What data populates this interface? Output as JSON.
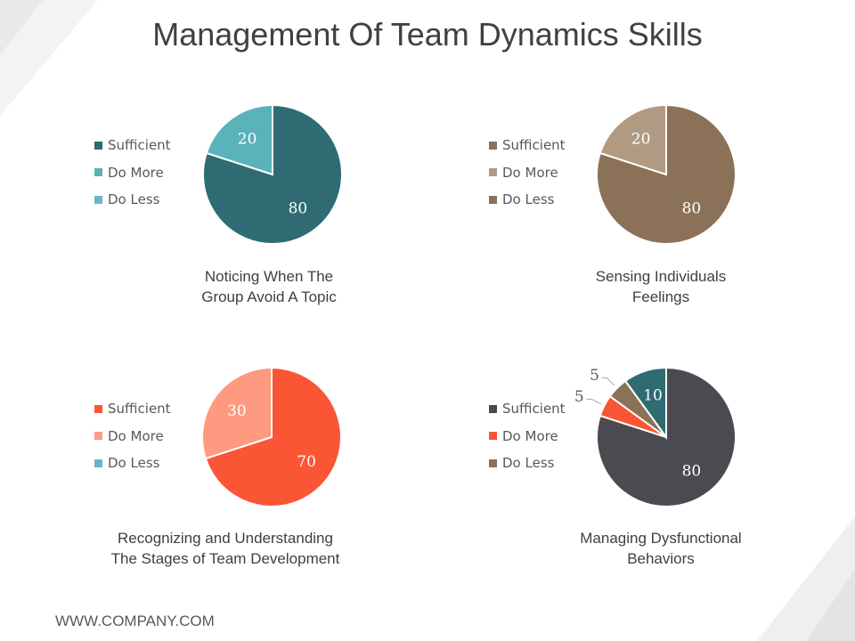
{
  "title": "Management Of Team Dynamics Skills",
  "footer": "WWW.COMPANY.COM",
  "chart_data": [
    {
      "type": "pie",
      "caption": [
        "Noticing When The",
        "Group Avoid A Topic"
      ],
      "legend": [
        "Sufficient",
        "Do More",
        "Do Less"
      ],
      "legend_colors": [
        "#2e6b73",
        "#5ab2ba",
        "#6cb5c4"
      ],
      "slices": [
        {
          "label": "Sufficient",
          "value": 80,
          "color": "#2e6b73",
          "text_color": "#ffffff"
        },
        {
          "label": "Do More",
          "value": 20,
          "color": "#5ab2ba",
          "text_color": "#ffffff"
        }
      ]
    },
    {
      "type": "pie",
      "caption": [
        "Sensing Individuals",
        "Feelings"
      ],
      "legend": [
        "Sufficient",
        "Do More",
        "Do Less"
      ],
      "legend_colors": [
        "#8b7157",
        "#b09a82",
        "#8b7157"
      ],
      "slices": [
        {
          "label": "Sufficient",
          "value": 80,
          "color": "#8b7157",
          "text_color": "#ffffff"
        },
        {
          "label": "Do More",
          "value": 20,
          "color": "#b09a82",
          "text_color": "#ffffff"
        }
      ]
    },
    {
      "type": "pie",
      "caption": [
        "Recognizing and Understanding",
        "The Stages of Team Development"
      ],
      "legend": [
        "Sufficient",
        "Do More",
        "Do Less"
      ],
      "legend_colors": [
        "#fa5535",
        "#fd9a80",
        "#6cb5c4"
      ],
      "slices": [
        {
          "label": "Sufficient",
          "value": 70,
          "color": "#fa5535",
          "text_color": "#ffffff"
        },
        {
          "label": "Do More",
          "value": 30,
          "color": "#fd9a80",
          "text_color": "#ffffff"
        }
      ]
    },
    {
      "type": "pie",
      "caption": [
        "Managing Dysfunctional",
        "Behaviors"
      ],
      "legend": [
        "Sufficient",
        "Do More",
        "Do Less"
      ],
      "legend_colors": [
        "#4b4a50",
        "#fa5535",
        "#8b7157"
      ],
      "slices": [
        {
          "label": "Sufficient",
          "value": 80,
          "color": "#4b4a50",
          "text_color": "#ffffff"
        },
        {
          "label": "Do More",
          "value": 5,
          "color": "#fa5535",
          "text_color": "#595959",
          "outside": true
        },
        {
          "label": "Do Less",
          "value": 5,
          "color": "#8b7157",
          "text_color": "#595959",
          "outside": true
        },
        {
          "label": "",
          "value": 10,
          "color": "#2e6b73",
          "text_color": "#ffffff"
        }
      ]
    }
  ]
}
